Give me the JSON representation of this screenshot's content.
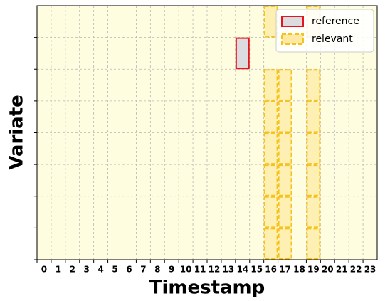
{
  "chart_data": {
    "type": "cell-grid",
    "xlabel": "Timestamp",
    "ylabel": "Variate",
    "categories": [
      0,
      1,
      2,
      3,
      4,
      5,
      6,
      7,
      8,
      9,
      10,
      11,
      12,
      13,
      14,
      15,
      16,
      17,
      18,
      19,
      20,
      21,
      22,
      23
    ],
    "variates": [
      null,
      null,
      null,
      null,
      null,
      null,
      null,
      null
    ],
    "background": "#fffde0",
    "grid": true,
    "legend": "upper right",
    "series": [
      {
        "name": "reference",
        "color": "#e8141c",
        "fill": "#dcdce0",
        "style": "solid",
        "points": [
          {
            "x": 14,
            "y": 1
          }
        ]
      },
      {
        "name": "relevant",
        "color": "#f7c21c",
        "fill": "#fde9a3",
        "style": "dashed",
        "points": [
          {
            "x": 16,
            "y": 0
          },
          {
            "x": 19,
            "y": 0
          },
          {
            "x": 16,
            "y": 2
          },
          {
            "x": 16,
            "y": 3
          },
          {
            "x": 16,
            "y": 4
          },
          {
            "x": 16,
            "y": 5
          },
          {
            "x": 16,
            "y": 6
          },
          {
            "x": 16,
            "y": 7
          },
          {
            "x": 17,
            "y": 2
          },
          {
            "x": 17,
            "y": 3
          },
          {
            "x": 17,
            "y": 4
          },
          {
            "x": 17,
            "y": 5
          },
          {
            "x": 17,
            "y": 6
          },
          {
            "x": 17,
            "y": 7
          },
          {
            "x": 19,
            "y": 2
          },
          {
            "x": 19,
            "y": 3
          },
          {
            "x": 19,
            "y": 4
          },
          {
            "x": 19,
            "y": 5
          },
          {
            "x": 19,
            "y": 6
          },
          {
            "x": 19,
            "y": 7
          }
        ]
      }
    ]
  }
}
